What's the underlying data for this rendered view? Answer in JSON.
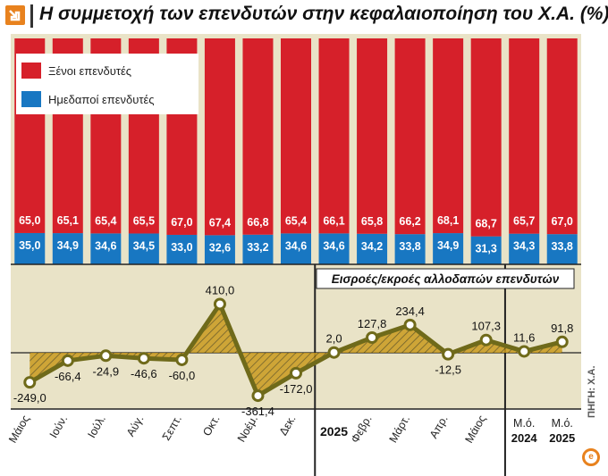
{
  "title": "Η συμμετοχή των επενδυτών στην κεφαλαιοποίηση του Χ.Α. (%)",
  "source": "ΠΗΓΗ: Χ.Α.",
  "colors": {
    "foreign": "#d6202a",
    "domestic": "#1877c2",
    "background": "#e9e3c7",
    "line": "#6f6a1a",
    "fill": "#c99a1e",
    "accent": "#e8821e"
  },
  "chart_data": [
    {
      "type": "bar",
      "stacked": true,
      "categories": [
        "Μάιος",
        "Ιούν.",
        "Ιούλ.",
        "Αύγ.",
        "Σεπτ.",
        "Οκτ.",
        "Νοέμ.",
        "Δεκ.",
        "2025",
        "Φεβρ.",
        "Μάρτ.",
        "Απρ.",
        "Μάιος",
        "Μ.ό. 2024",
        "Μ.ό. 2025"
      ],
      "series": [
        {
          "name": "Ξένοι επενδυτές",
          "values": [
            65.0,
            65.1,
            65.4,
            65.5,
            67.0,
            67.4,
            66.8,
            65.4,
            66.1,
            65.8,
            66.2,
            68.1,
            68.7,
            65.7,
            67.0
          ]
        },
        {
          "name": "Ημεδαποί επενδυτές",
          "values": [
            35.0,
            34.9,
            34.6,
            34.5,
            33.0,
            32.6,
            33.2,
            34.6,
            34.6,
            34.2,
            33.8,
            34.9,
            31.3,
            34.3,
            33.8
          ]
        }
      ],
      "value_labels": {
        "foreign": [
          "65,0",
          "65,1",
          "65,4",
          "65,5",
          "67,0",
          "67,4",
          "66,8",
          "65,4",
          "66,1",
          "65,8",
          "66,2",
          "68,1",
          "68,7",
          "65,7",
          "67,0"
        ],
        "domestic": [
          "35,0",
          "34,9",
          "34,6",
          "34,5",
          "33,0",
          "32,6",
          "33,2",
          "34,6",
          "34,6",
          "34,2",
          "33,8",
          "34,9",
          "31,3",
          "34,3",
          "33,8"
        ]
      },
      "ylim": [
        0,
        100
      ],
      "legend": [
        "Ξένοι επενδυτές",
        "Ημεδαποί επενδυτές"
      ],
      "legend_position": "top-left"
    },
    {
      "type": "line",
      "title": "Εισροές/εκροές αλλοδαπών επενδυτών",
      "categories": [
        "Μάιος",
        "Ιούν.",
        "Ιούλ.",
        "Αύγ.",
        "Σεπτ.",
        "Οκτ.",
        "Νοέμ.",
        "Δεκ.",
        "2025",
        "Φεβρ.",
        "Μάρτ.",
        "Απρ.",
        "Μάιος",
        "Μ.ό. 2024",
        "Μ.ό. 2025"
      ],
      "values": [
        -249.0,
        -66.4,
        -24.9,
        -46.6,
        -60.0,
        410.0,
        -361.4,
        -172.0,
        2.0,
        127.8,
        234.4,
        -12.5,
        107.3,
        11.6,
        91.8
      ],
      "labels": [
        "-249,0",
        "-66,4",
        "-24,9",
        "-46,6",
        "-60,0",
        "410,0",
        "-361,4",
        "-172,0",
        "2,0",
        "127,8",
        "234,4",
        "-12,5",
        "107,3",
        "11,6",
        "91,8"
      ],
      "fill_to_zero": true,
      "ylim": [
        -500,
        600
      ]
    }
  ],
  "axis": {
    "labels": [
      {
        "text": "Μάιος",
        "bold": false,
        "rotated": true
      },
      {
        "text": "Ιούν.",
        "bold": false,
        "rotated": true
      },
      {
        "text": "Ιούλ.",
        "bold": false,
        "rotated": true
      },
      {
        "text": "Αύγ.",
        "bold": false,
        "rotated": true
      },
      {
        "text": "Σεπτ.",
        "bold": false,
        "rotated": true
      },
      {
        "text": "Οκτ.",
        "bold": false,
        "rotated": true
      },
      {
        "text": "Νοέμ.",
        "bold": false,
        "rotated": true
      },
      {
        "text": "Δεκ.",
        "bold": false,
        "rotated": true
      },
      {
        "text": "2025",
        "bold": true,
        "rotated": false
      },
      {
        "text": "Φεβρ.",
        "bold": false,
        "rotated": true
      },
      {
        "text": "Μάρτ.",
        "bold": false,
        "rotated": true
      },
      {
        "text": "Απρ.",
        "bold": false,
        "rotated": true
      },
      {
        "text": "Μάιος",
        "bold": false,
        "rotated": true
      },
      {
        "text": "Μ.ό.",
        "sub": "2024",
        "bold": false,
        "rotated": false
      },
      {
        "text": "Μ.ό.",
        "sub": "2025",
        "bold": false,
        "rotated": false
      }
    ]
  }
}
